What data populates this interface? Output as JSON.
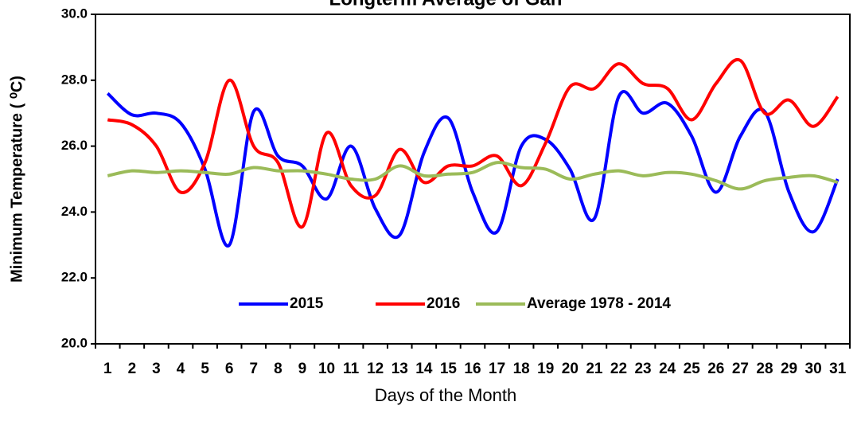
{
  "chart_data": {
    "type": "line",
    "title": "Longterm Average of Gan",
    "y_label": "Minimum Temperature ( ⁰C)",
    "x_label": "Days of the Month",
    "categories": [
      "1",
      "2",
      "3",
      "4",
      "5",
      "6",
      "7",
      "8",
      "9",
      "10",
      "11",
      "12",
      "13",
      "14",
      "15",
      "16",
      "17",
      "18",
      "19",
      "20",
      "21",
      "22",
      "23",
      "24",
      "25",
      "26",
      "27",
      "28",
      "29",
      "30",
      "31"
    ],
    "series": [
      {
        "name": "2015",
        "color": "#0000ff",
        "values": [
          27.6,
          26.95,
          27.0,
          26.7,
          25.3,
          23.0,
          27.05,
          25.7,
          25.4,
          24.4,
          26.0,
          24.1,
          23.3,
          25.8,
          26.85,
          24.6,
          23.4,
          26.0,
          26.2,
          25.3,
          23.8,
          27.5,
          27.0,
          27.3,
          26.3,
          24.6,
          26.3,
          27.05,
          24.6,
          23.4,
          25.0
        ]
      },
      {
        "name": "2016",
        "color": "#ff0000",
        "values": [
          26.8,
          26.65,
          26.0,
          24.6,
          25.5,
          28.0,
          26.0,
          25.5,
          23.55,
          26.4,
          24.8,
          24.5,
          25.9,
          24.9,
          25.4,
          25.4,
          25.7,
          24.8,
          26.1,
          27.8,
          27.75,
          28.5,
          27.9,
          27.75,
          26.8,
          27.9,
          28.6,
          27.0,
          27.4,
          26.6,
          27.5
        ]
      },
      {
        "name": "Average 1978 - 2014",
        "color": "#9bbb59",
        "values": [
          25.1,
          25.25,
          25.2,
          25.25,
          25.2,
          25.15,
          25.35,
          25.25,
          25.25,
          25.15,
          25.0,
          25.0,
          25.4,
          25.1,
          25.15,
          25.2,
          25.5,
          25.35,
          25.3,
          25.0,
          25.15,
          25.25,
          25.1,
          25.2,
          25.15,
          24.95,
          24.7,
          24.95,
          25.05,
          25.1,
          24.9
        ]
      }
    ],
    "ylim": [
      20,
      30
    ],
    "yticks": [
      {
        "value": 20,
        "label": "20.0"
      },
      {
        "value": 22,
        "label": "22.0"
      },
      {
        "value": 24,
        "label": "24.0"
      },
      {
        "value": 26,
        "label": "26.0"
      },
      {
        "value": 28,
        "label": "28.0"
      },
      {
        "value": 30,
        "label": "30.0"
      }
    ],
    "grid": false,
    "legend": "bottom"
  }
}
